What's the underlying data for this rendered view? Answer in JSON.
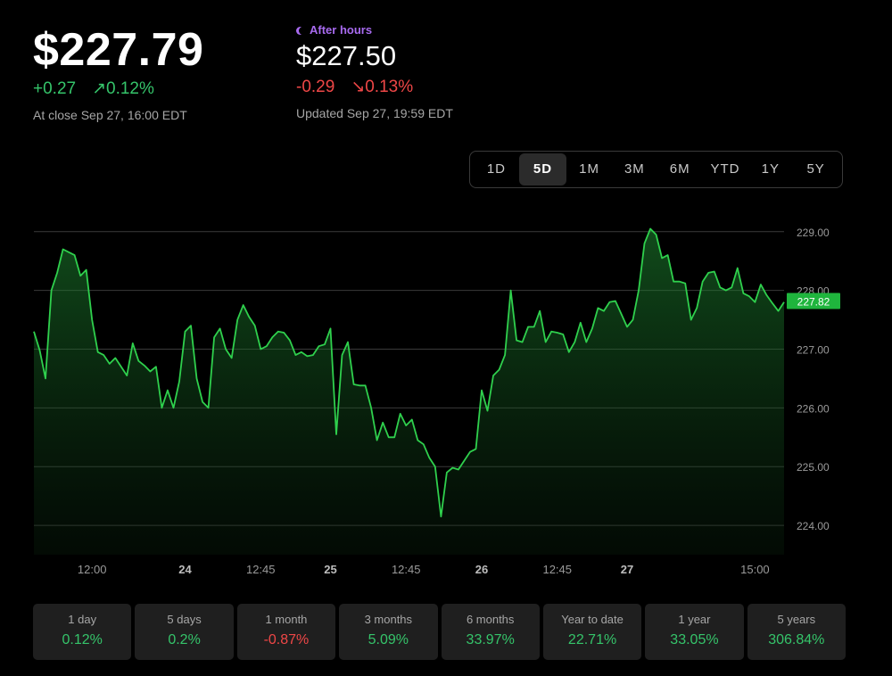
{
  "close": {
    "price": "$227.79",
    "change": "+0.27",
    "change_pct": "↗0.12%",
    "note": "At close Sep 27, 16:00 EDT"
  },
  "after_hours": {
    "label": "After hours",
    "price": "$227.50",
    "change": "-0.29",
    "change_pct": "↘0.13%",
    "note": "Updated Sep 27, 19:59 EDT"
  },
  "ranges": [
    {
      "label": "1D",
      "active": false
    },
    {
      "label": "5D",
      "active": true
    },
    {
      "label": "1M",
      "active": false
    },
    {
      "label": "3M",
      "active": false
    },
    {
      "label": "6M",
      "active": false
    },
    {
      "label": "YTD",
      "active": false
    },
    {
      "label": "1Y",
      "active": false
    },
    {
      "label": "5Y",
      "active": false
    }
  ],
  "colors": {
    "positive": "#35c46a",
    "negative": "#ef4747",
    "line": "#2fd04d",
    "badge": "#1fb53d",
    "after_hours": "#a86bf0"
  },
  "chart_data": {
    "type": "area",
    "current_value_label": "227.82",
    "current_value": 227.82,
    "ylim": [
      223.5,
      229.3
    ],
    "y_ticks": [
      229.0,
      228.0,
      227.0,
      226.0,
      225.0,
      224.0
    ],
    "y_tick_labels": [
      "229.00",
      "228.00",
      "227.00",
      "226.00",
      "225.00",
      "224.00"
    ],
    "x_ticks": [
      {
        "label": "12:00",
        "index": 10,
        "bold": false
      },
      {
        "label": "24",
        "index": 26,
        "bold": true
      },
      {
        "label": "12:45",
        "index": 39,
        "bold": false
      },
      {
        "label": "25",
        "index": 51,
        "bold": true
      },
      {
        "label": "12:45",
        "index": 64,
        "bold": false
      },
      {
        "label": "26",
        "index": 77,
        "bold": true
      },
      {
        "label": "12:45",
        "index": 90,
        "bold": false
      },
      {
        "label": "27",
        "index": 102,
        "bold": true
      },
      {
        "label": "15:00",
        "index": 124,
        "bold": false
      }
    ],
    "values": [
      227.3,
      226.98,
      226.5,
      228.0,
      228.3,
      228.7,
      228.65,
      228.6,
      228.25,
      228.35,
      227.5,
      226.95,
      226.9,
      226.75,
      226.85,
      226.7,
      226.55,
      227.1,
      226.8,
      226.72,
      226.62,
      226.7,
      226.0,
      226.3,
      226.0,
      226.45,
      227.3,
      227.4,
      226.5,
      226.1,
      226.0,
      227.2,
      227.35,
      227.0,
      226.85,
      227.5,
      227.75,
      227.55,
      227.4,
      227.0,
      227.05,
      227.2,
      227.3,
      227.28,
      227.15,
      226.9,
      226.95,
      226.88,
      226.9,
      227.05,
      227.08,
      227.35,
      225.55,
      226.9,
      227.12,
      226.4,
      226.38,
      226.38,
      226.0,
      225.45,
      225.75,
      225.5,
      225.5,
      225.9,
      225.7,
      225.8,
      225.45,
      225.38,
      225.15,
      225.0,
      224.15,
      224.9,
      224.98,
      224.95,
      225.1,
      225.25,
      225.3,
      226.3,
      225.95,
      226.55,
      226.65,
      226.9,
      228.0,
      227.15,
      227.12,
      227.38,
      227.38,
      227.65,
      227.12,
      227.3,
      227.28,
      227.25,
      226.95,
      227.12,
      227.45,
      227.12,
      227.35,
      227.7,
      227.65,
      227.8,
      227.82,
      227.6,
      227.38,
      227.5,
      228.0,
      228.8,
      229.05,
      228.95,
      228.55,
      228.6,
      228.15,
      228.15,
      228.12,
      227.5,
      227.7,
      228.15,
      228.3,
      228.32,
      228.05,
      228.0,
      228.05,
      228.38,
      227.95,
      227.9,
      227.8,
      228.1,
      227.92,
      227.78,
      227.65,
      227.8
    ]
  },
  "stats": [
    {
      "label": "1 day",
      "value": "0.12%",
      "trend": "pos"
    },
    {
      "label": "5 days",
      "value": "0.2%",
      "trend": "pos"
    },
    {
      "label": "1 month",
      "value": "-0.87%",
      "trend": "neg"
    },
    {
      "label": "3 months",
      "value": "5.09%",
      "trend": "pos"
    },
    {
      "label": "6 months",
      "value": "33.97%",
      "trend": "pos"
    },
    {
      "label": "Year to date",
      "value": "22.71%",
      "trend": "pos"
    },
    {
      "label": "1 year",
      "value": "33.05%",
      "trend": "pos"
    },
    {
      "label": "5 years",
      "value": "306.84%",
      "trend": "pos"
    }
  ]
}
